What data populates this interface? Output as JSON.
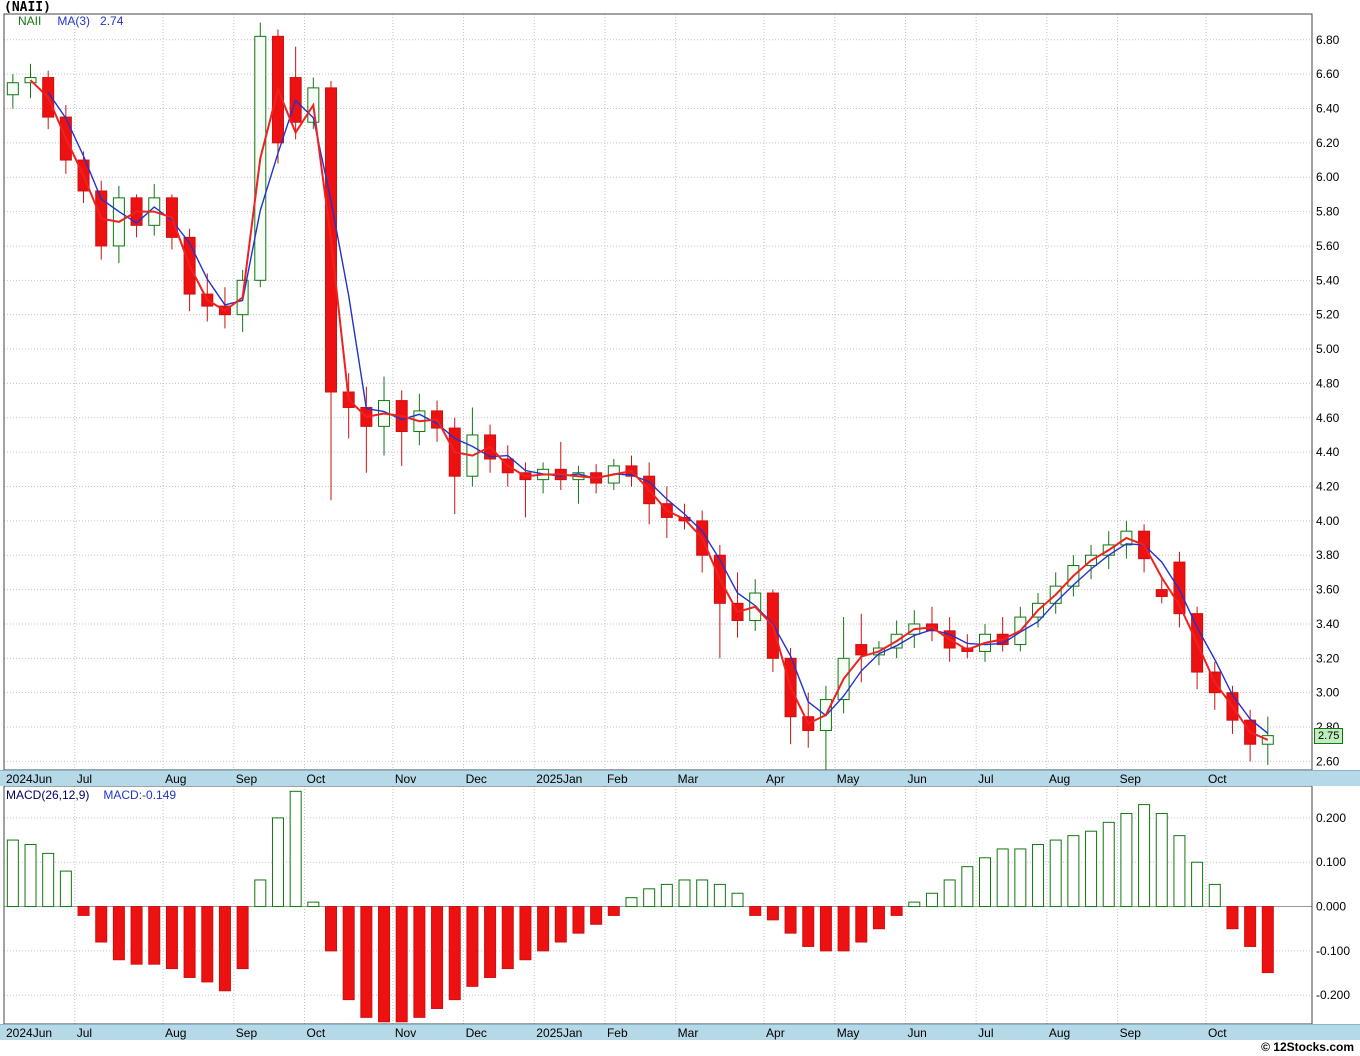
{
  "header": {
    "title": "(NAII)",
    "symbol": "NAII",
    "ma_label": "MA(3)",
    "ma_value": "2.74"
  },
  "macd_panel": {
    "label": "MACD(26,12,9)",
    "value": "MACD:-0.149"
  },
  "price_tag": {
    "text": "2.75"
  },
  "footer": {
    "copyright": "© 12Stocks.com"
  },
  "colors": {
    "up": "#117711",
    "up_fill": "#f6fcf6",
    "down": "#ee1111",
    "down_stroke": "#cc1111",
    "ma_fast_red": "#ee2222",
    "ma3_blue": "#2233cc",
    "band": "#b6d9e8",
    "grid": "#c4c4c4",
    "symbol_green": "#117711",
    "legend_blue": "#2233cc",
    "macd_label_navy": "#000066",
    "tag_bg": "#bfedbf",
    "tag_border": "#117711"
  },
  "chart_data": [
    {
      "type": "candlestick",
      "title": "(NAII)",
      "series_name": "NAII",
      "x_axis": {
        "months": [
          "2024Jun",
          "Jul",
          "Aug",
          "Sep",
          "Oct",
          "Nov",
          "Dec",
          "2025Jan",
          "Feb",
          "Mar",
          "Apr",
          "May",
          "Jun",
          "Jul",
          "Aug",
          "Sep",
          "Oct"
        ],
        "month_start_index": [
          0,
          4,
          9,
          13,
          17,
          22,
          26,
          30,
          34,
          38,
          43,
          47,
          51,
          55,
          59,
          63,
          68
        ],
        "total_slots": 74
      },
      "ylim": [
        2.55,
        6.95
      ],
      "yticks_range": [
        2.6,
        6.8
      ],
      "ytick_step": 0.2,
      "ma_periods": {
        "blue_ma": 3,
        "red_ma": 2
      },
      "ma3_last": 2.74,
      "last_close": 2.75,
      "ohlc": [
        [
          6.48,
          6.6,
          6.4,
          6.55
        ],
        [
          6.55,
          6.66,
          6.46,
          6.58
        ],
        [
          6.58,
          6.62,
          6.28,
          6.35
        ],
        [
          6.35,
          6.42,
          6.02,
          6.1
        ],
        [
          6.1,
          6.15,
          5.85,
          5.92
        ],
        [
          5.92,
          5.98,
          5.52,
          5.6
        ],
        [
          5.6,
          5.95,
          5.5,
          5.88
        ],
        [
          5.88,
          5.9,
          5.65,
          5.72
        ],
        [
          5.72,
          5.96,
          5.66,
          5.88
        ],
        [
          5.88,
          5.9,
          5.58,
          5.65
        ],
        [
          5.65,
          5.7,
          5.22,
          5.32
        ],
        [
          5.32,
          5.44,
          5.16,
          5.25
        ],
        [
          5.25,
          5.36,
          5.12,
          5.2
        ],
        [
          5.2,
          5.46,
          5.1,
          5.4
        ],
        [
          5.4,
          6.9,
          5.36,
          6.82
        ],
        [
          6.82,
          6.86,
          6.08,
          6.2
        ],
        [
          6.58,
          6.76,
          6.22,
          6.32
        ],
        [
          6.32,
          6.58,
          6.28,
          6.52
        ],
        [
          6.52,
          6.56,
          4.12,
          4.75
        ],
        [
          4.75,
          4.86,
          4.48,
          4.66
        ],
        [
          4.66,
          4.78,
          4.28,
          4.55
        ],
        [
          4.55,
          4.84,
          4.38,
          4.7
        ],
        [
          4.7,
          4.76,
          4.32,
          4.52
        ],
        [
          4.52,
          4.74,
          4.44,
          4.64
        ],
        [
          4.64,
          4.7,
          4.46,
          4.54
        ],
        [
          4.54,
          4.6,
          4.04,
          4.26
        ],
        [
          4.26,
          4.66,
          4.2,
          4.5
        ],
        [
          4.5,
          4.56,
          4.28,
          4.36
        ],
        [
          4.36,
          4.44,
          4.2,
          4.28
        ],
        [
          4.28,
          4.34,
          4.02,
          4.24
        ],
        [
          4.24,
          4.34,
          4.16,
          4.3
        ],
        [
          4.3,
          4.46,
          4.18,
          4.24
        ],
        [
          4.24,
          4.32,
          4.1,
          4.28
        ],
        [
          4.28,
          4.33,
          4.16,
          4.22
        ],
        [
          4.22,
          4.36,
          4.18,
          4.32
        ],
        [
          4.32,
          4.38,
          4.2,
          4.26
        ],
        [
          4.26,
          4.34,
          3.98,
          4.1
        ],
        [
          4.1,
          4.2,
          3.9,
          4.02
        ],
        [
          4.02,
          4.1,
          3.95,
          4.0
        ],
        [
          4.0,
          4.06,
          3.7,
          3.8
        ],
        [
          3.8,
          3.86,
          3.2,
          3.52
        ],
        [
          3.52,
          3.7,
          3.32,
          3.42
        ],
        [
          3.42,
          3.66,
          3.36,
          3.58
        ],
        [
          3.58,
          3.6,
          3.12,
          3.2
        ],
        [
          3.2,
          3.26,
          2.7,
          2.86
        ],
        [
          2.86,
          3.0,
          2.68,
          2.78
        ],
        [
          2.78,
          3.04,
          2.55,
          2.96
        ],
        [
          2.96,
          3.44,
          2.88,
          3.2
        ],
        [
          3.28,
          3.46,
          3.06,
          3.22
        ],
        [
          3.22,
          3.3,
          3.16,
          3.26
        ],
        [
          3.26,
          3.42,
          3.2,
          3.34
        ],
        [
          3.34,
          3.48,
          3.26,
          3.4
        ],
        [
          3.4,
          3.5,
          3.3,
          3.36
        ],
        [
          3.36,
          3.44,
          3.18,
          3.26
        ],
        [
          3.26,
          3.34,
          3.2,
          3.24
        ],
        [
          3.24,
          3.4,
          3.18,
          3.34
        ],
        [
          3.34,
          3.44,
          3.24,
          3.28
        ],
        [
          3.28,
          3.5,
          3.24,
          3.44
        ],
        [
          3.44,
          3.58,
          3.38,
          3.52
        ],
        [
          3.52,
          3.7,
          3.46,
          3.62
        ],
        [
          3.62,
          3.8,
          3.56,
          3.74
        ],
        [
          3.74,
          3.86,
          3.66,
          3.8
        ],
        [
          3.8,
          3.94,
          3.72,
          3.86
        ],
        [
          3.86,
          4.0,
          3.78,
          3.94
        ],
        [
          3.94,
          3.98,
          3.7,
          3.78
        ],
        [
          3.6,
          3.66,
          3.52,
          3.56
        ],
        [
          3.76,
          3.82,
          3.38,
          3.46
        ],
        [
          3.46,
          3.5,
          3.02,
          3.12
        ],
        [
          3.12,
          3.18,
          2.9,
          3.0
        ],
        [
          3.0,
          3.04,
          2.76,
          2.84
        ],
        [
          2.84,
          2.9,
          2.6,
          2.7
        ],
        [
          2.7,
          2.86,
          2.58,
          2.75
        ]
      ]
    },
    {
      "type": "bar",
      "name": "MACD(26,12,9)",
      "ylim": [
        -0.265,
        0.272
      ],
      "yticks": [
        0.2,
        0.1,
        0,
        -0.1,
        -0.2
      ],
      "last": -0.149,
      "values": [
        0.15,
        0.14,
        0.12,
        0.08,
        -0.02,
        -0.08,
        -0.12,
        -0.13,
        -0.13,
        -0.14,
        -0.16,
        -0.17,
        -0.19,
        -0.14,
        0.06,
        0.2,
        0.26,
        0.01,
        -0.1,
        -0.21,
        -0.25,
        -0.26,
        -0.26,
        -0.25,
        -0.23,
        -0.21,
        -0.18,
        -0.16,
        -0.14,
        -0.12,
        -0.1,
        -0.08,
        -0.06,
        -0.04,
        -0.02,
        0.02,
        0.04,
        0.05,
        0.06,
        0.06,
        0.05,
        0.03,
        -0.02,
        -0.03,
        -0.06,
        -0.09,
        -0.1,
        -0.1,
        -0.08,
        -0.05,
        -0.02,
        0.01,
        0.03,
        0.06,
        0.09,
        0.11,
        0.13,
        0.13,
        0.14,
        0.15,
        0.16,
        0.17,
        0.19,
        0.21,
        0.23,
        0.21,
        0.16,
        0.1,
        0.05,
        -0.05,
        -0.09,
        -0.149
      ]
    }
  ]
}
